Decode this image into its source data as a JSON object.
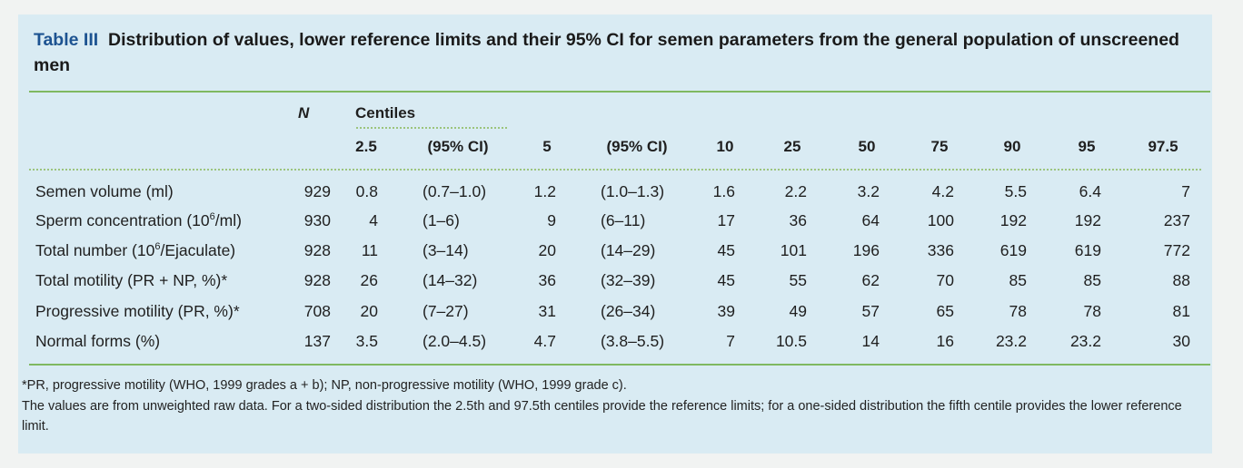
{
  "table": {
    "label": "Table III",
    "title": "Distribution of values, lower reference limits and their 95% CI for semen parameters from the general population of unscreened men",
    "header": {
      "n": "N",
      "centiles": "Centiles",
      "columns": [
        "2.5",
        "(95% CI)",
        "5",
        "(95% CI)",
        "10",
        "25",
        "50",
        "75",
        "90",
        "95",
        "97.5"
      ]
    },
    "rows": [
      {
        "label_pre": "Semen volume (ml)",
        "sup": "",
        "label_post": "",
        "n": "929",
        "values": [
          "0.8",
          "(0.7–1.0)",
          "1.2",
          "(1.0–1.3)",
          "1.6",
          "2.2",
          "3.2",
          "4.2",
          "5.5",
          "6.4",
          "7"
        ]
      },
      {
        "label_pre": "Sperm concentration (10",
        "sup": "6",
        "label_post": "/ml)",
        "n": "930",
        "values": [
          "4",
          "(1–6)",
          "9",
          "(6–11)",
          "17",
          "36",
          "64",
          "100",
          "192",
          "192",
          "237"
        ]
      },
      {
        "label_pre": "Total number (10",
        "sup": "6",
        "label_post": "/Ejaculate)",
        "n": "928",
        "values": [
          "11",
          "(3–14)",
          "20",
          "(14–29)",
          "45",
          "101",
          "196",
          "336",
          "619",
          "619",
          "772"
        ]
      },
      {
        "label_pre": "Total motility (PR + NP, %)*",
        "sup": "",
        "label_post": "",
        "n": "928",
        "values": [
          "26",
          "(14–32)",
          "36",
          "(32–39)",
          "45",
          "55",
          "62",
          "70",
          "85",
          "85",
          "88"
        ]
      },
      {
        "label_pre": "Progressive motility (PR, %)*",
        "sup": "",
        "label_post": "",
        "n": "708",
        "values": [
          "20",
          "(7–27)",
          "31",
          "(26–34)",
          "39",
          "49",
          "57",
          "65",
          "78",
          "78",
          "81"
        ]
      },
      {
        "label_pre": "Normal forms (%)",
        "sup": "",
        "label_post": "",
        "n": "137",
        "values": [
          "3.5",
          "(2.0–4.5)",
          "4.7",
          "(3.8–5.5)",
          "7",
          "10.5",
          "14",
          "16",
          "23.2",
          "23.2",
          "30"
        ]
      }
    ],
    "footnotes": [
      "*PR, progressive motility (WHO, 1999 grades a + b); NP, non-progressive motility (WHO, 1999 grade c).",
      "The values are from unweighted raw data. For a two-sided distribution the 2.5th and 97.5th centiles provide the reference limits; for a one-sided distribution the fifth centile provides the lower reference limit."
    ]
  }
}
